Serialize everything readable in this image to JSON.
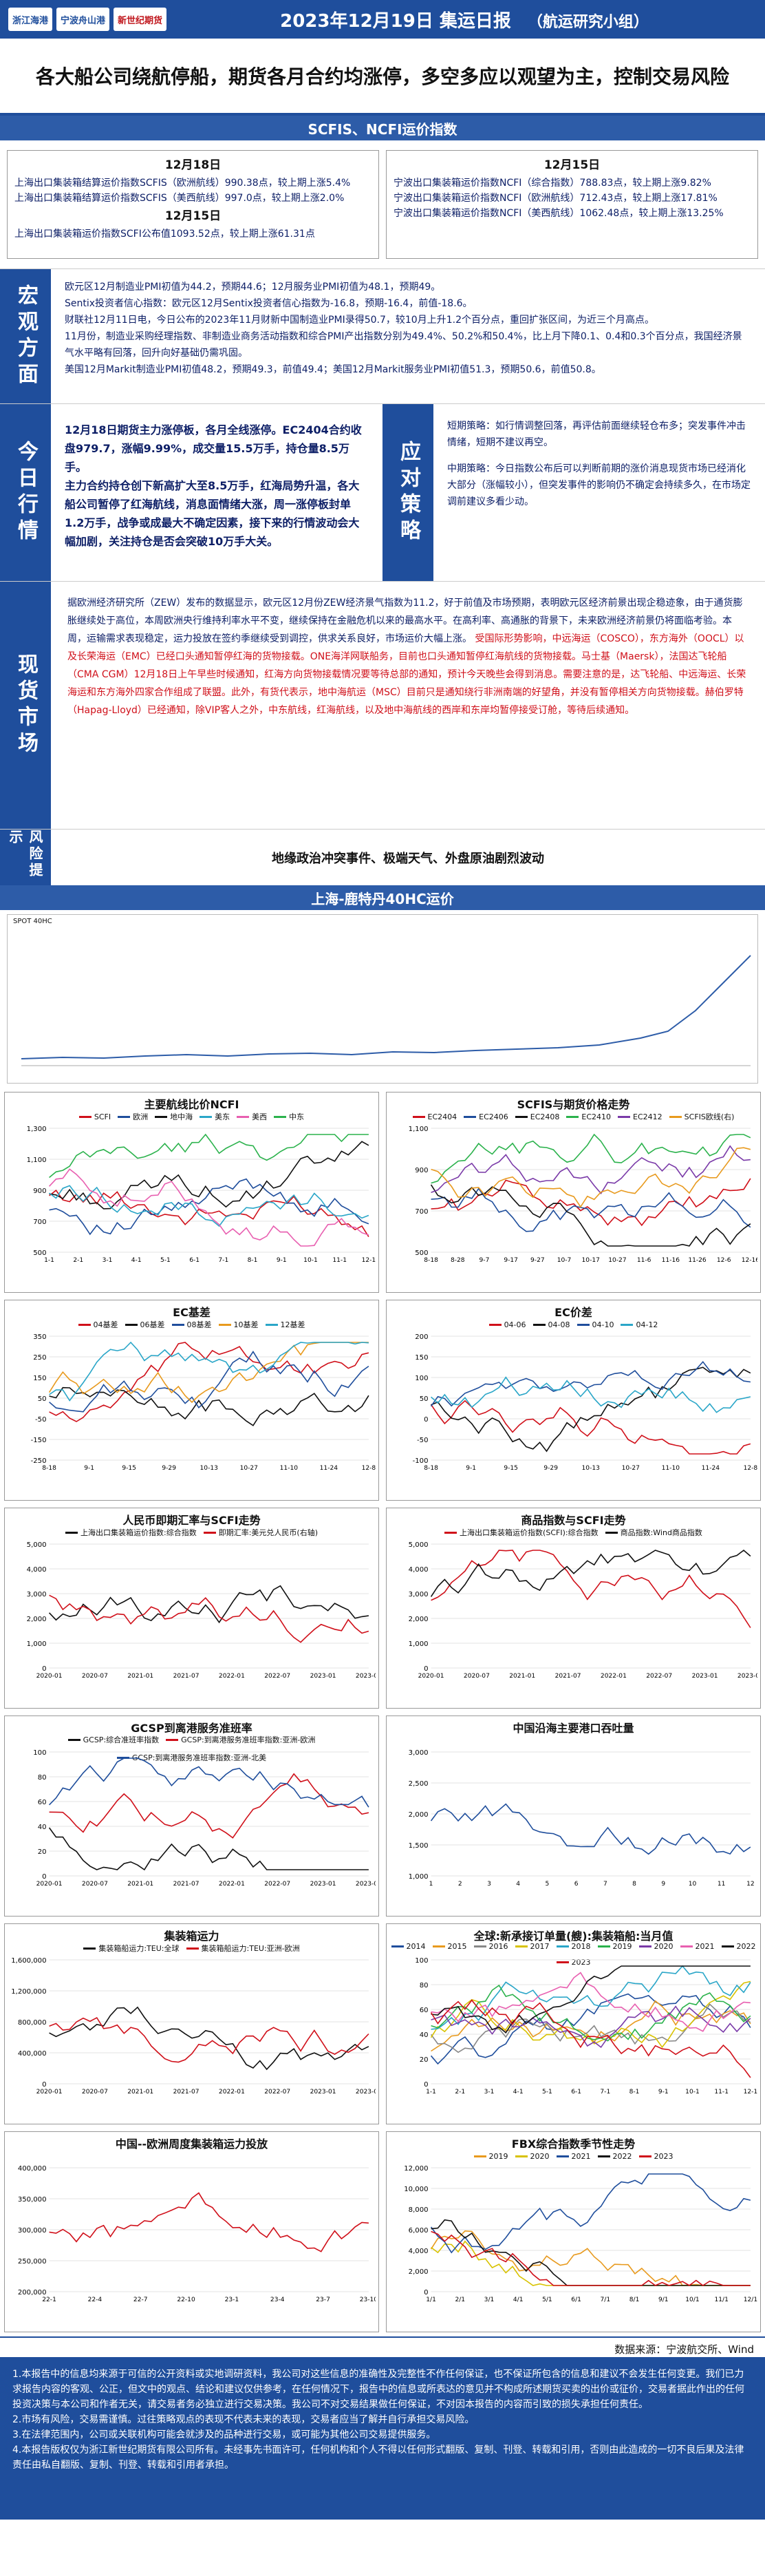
{
  "header": {
    "logos": [
      "浙江海港",
      "宁波舟山港",
      "新世纪期货"
    ],
    "title": "2023年12月19日 集运日报",
    "group": "（航运研究小组）"
  },
  "headline": "各大船公司绕航停船，期货各月合约均涨停，多空多应以观望为主，控制交易风险",
  "scfis_section": "SCFIS、NCFI运价指数",
  "scfis": {
    "left_date_1": "12月18日",
    "left_lines_1": [
      "上海出口集装箱结算运价指数SCFIS（欧洲航线）990.38点，较上期上涨5.4%",
      "上海出口集装箱结算运价指数SCFIS（美西航线）997.0点，较上期上涨2.0%"
    ],
    "left_date_2": "12月15日",
    "left_lines_2": [
      "上海出口集装箱运价指数SCFI公布值1093.52点，较上期上涨61.31点"
    ],
    "right_date": "12月15日",
    "right_lines": [
      "宁波出口集装箱运价指数NCFI（综合指数）788.83点，较上期上涨9.82%",
      "宁波出口集装箱运价指数NCFI（欧洲航线）712.43点，较上期上涨17.81%",
      "宁波出口集装箱运价指数NCFI（美西航线）1062.48点，较上期上涨13.25%"
    ]
  },
  "macro": {
    "label": "宏观方面",
    "lines": [
      "欧元区12月制造业PMI初值为44.2，预期44.6；12月服务业PMI初值为48.1，预期49。",
      "Sentix投资者信心指数：欧元区12月Sentix投资者信心指数为-16.8，预期-16.4，前值-18.6。",
      "财联社12月11日电，今日公布的2023年11月财新中国制造业PMI录得50.7，较10月上升1.2个百分点，重回扩张区间，为近三个月高点。",
      "11月份，制造业采购经理指数、非制造业商务活动指数和综合PMI产出指数分别为49.4%、50.2%和50.4%，比上月下降0.1、0.4和0.3个百分点，我国经济景气水平略有回落，回升向好基础仍需巩固。",
      "美国12月Markit制造业PMI初值48.2，预期49.3，前值49.4；美国12月Markit服务业PMI初值51.3，预期50.6，前值50.8。"
    ]
  },
  "today": {
    "label": "今日行情",
    "lines": [
      "12月18日期货主力涨停板，各月全线涨停。EC2404合约收盘979.7，涨幅9.99%，成交量15.5万手，持仓量8.5万手。",
      "主力合约持仓创下新高扩大至8.5万手，红海局势升温，各大船公司暂停了红海航线，消息面情绪大涨，周一涨停板封单1.2万手，战争或成最大不确定因素，接下来的行情波动会大幅加剧，关注持仓是否会突破10万手大关。"
    ]
  },
  "strategy": {
    "label": "应对策略",
    "short": "短期策略：如行情调整回落，再评估前面继续轻仓布多；突发事件冲击情绪，短期不建议再空。",
    "mid": "中期策略：今日指数公布后可以判断前期的涨价消息现货市场已经消化大部分（涨幅较小），但突发事件的影响仍不确定会持续多久，在市场定调前建议多看少动。"
  },
  "spot": {
    "label": "现货市场",
    "para1": "据欧洲经济研究所（ZEW）发布的数据显示，欧元区12月份ZEW经济景气指数为11.2，好于前值及市场预期，表明欧元区经济前景出现企稳迹象，由于通货膨胀继续处于高位，本周欧洲央行维持利率水平不变，继续保持在金融危机以来的最高水平。在高利率、高通胀的背景下，未来欧洲经济前景仍将面临考验。本周，运输需求表现稳定，运力投放在签约季继续受到调控，供求关系良好，市场运价大幅上涨。",
    "red1": "受国际形势影响，中远海运（COSCO），东方海外（OOCL）以及长荣海运（EMC）已经口头通知暂停红海的货物接载。ONE海洋网联船务，目前也口头通知暂停红海航线的货物接载。马士基（Maersk），法国达飞轮船（CMA CGM）12月18日上午早些时候通知，红海方向货物接载情况要等待总部的通知，预计今天晚些会得到消息。需要注意的是，达飞轮船、中远海运、长荣海运和东方海外四家合作组成了联盟。此外，有货代表示，地中海航运（MSC）目前只是通知绕行非洲南端的好望角，并没有暂停相关方向货物接载。赫伯罗特（Hapag-Lloyd）已经通知，除VIP客人之外，中东航线，红海航线，以及地中海航线的西岸和东岸均暂停接受订舱，等待后续通知。"
  },
  "risk": {
    "label": "风险提示",
    "text": "地缘政治冲突事件、极端天气、外盘原油剧烈波动"
  },
  "route_section": "上海-鹿特丹40HC运价",
  "route_chart": {
    "legend": "SPOT 40HC"
  },
  "charts": {
    "ncfi": {
      "title": "主要航线比价NCFI",
      "legend": [
        "SCFI",
        "欧洲",
        "地中海",
        "美东",
        "美西",
        "中东"
      ],
      "colors": [
        "#d0101a",
        "#1f4e9c",
        "#111111",
        "#2aa6c8",
        "#e85fb0",
        "#2bb24c"
      ],
      "xticks": [
        "1-1",
        "2-1",
        "3-1",
        "4-1",
        "5-1",
        "6-1",
        "7-1",
        "8-1",
        "9-1",
        "10-1",
        "11-1",
        "12-1"
      ],
      "yticks": [
        "1,300",
        "1,100",
        "900",
        "700",
        "500"
      ]
    },
    "scfis_future": {
      "title": "SCFIS与期货价格走势",
      "legend": [
        "EC2404",
        "EC2406",
        "EC2408",
        "EC2410",
        "EC2412",
        "SCFIS欧线(右)"
      ],
      "colors": [
        "#d0101a",
        "#1f4e9c",
        "#111111",
        "#2bb24c",
        "#7a3aa8",
        "#e89a1e"
      ],
      "xticks": [
        "8-18",
        "8-28",
        "9-7",
        "9-17",
        "9-27",
        "10-7",
        "10-17",
        "10-27",
        "11-6",
        "11-16",
        "11-26",
        "12-6",
        "12-16"
      ],
      "yticks": [
        "1,100",
        "900",
        "700",
        "500"
      ]
    },
    "ec_basis": {
      "title": "EC基差",
      "legend": [
        "04基差",
        "06基差",
        "08基差",
        "10基差",
        "12基差"
      ],
      "colors": [
        "#d0101a",
        "#111111",
        "#1f4e9c",
        "#e89a1e",
        "#2aa6c8"
      ],
      "xticks": [
        "8-18",
        "9-1",
        "9-15",
        "9-29",
        "10-13",
        "10-27",
        "11-10",
        "11-24",
        "12-8"
      ],
      "yticks": [
        "350",
        "250",
        "150",
        "50",
        "-50",
        "-150",
        "-250"
      ]
    },
    "ec_spread": {
      "title": "EC价差",
      "legend": [
        "04-06",
        "04-08",
        "04-10",
        "04-12"
      ],
      "colors": [
        "#d0101a",
        "#111111",
        "#1f4e9c",
        "#2aa6c8"
      ],
      "xticks": [
        "8-18",
        "9-1",
        "9-15",
        "9-29",
        "10-13",
        "10-27",
        "11-10",
        "11-24",
        "12-8"
      ],
      "yticks": [
        "200",
        "150",
        "100",
        "50",
        "0",
        "-50",
        "-100"
      ]
    },
    "fx": {
      "title": "人民币即期汇率与SCFI走势",
      "legend": [
        "上海出口集装箱运价指数:综合指数",
        "即期汇率:美元兑人民币(右轴)"
      ],
      "colors": [
        "#111111",
        "#d0101a"
      ],
      "xticks": [
        "2020-01",
        "2020-07",
        "2021-01",
        "2021-07",
        "2022-01",
        "2022-07",
        "2023-01",
        "2023-07"
      ],
      "yticks": [
        "5,000",
        "4,000",
        "3,000",
        "2,000",
        "1,000",
        "0"
      ]
    },
    "commodity": {
      "title": "商品指数与SCFI走势",
      "legend": [
        "上海出口集装箱运价指数(SCFI):综合指数",
        "商品指数:Wind商品指数"
      ],
      "colors": [
        "#d0101a",
        "#111111"
      ],
      "xticks": [
        "2020-01",
        "2020-07",
        "2021-01",
        "2021-07",
        "2022-01",
        "2022-07",
        "2023-01",
        "2023-07"
      ],
      "yticks": [
        "5,000",
        "4,000",
        "3,000",
        "2,000",
        "1,000",
        "0"
      ]
    },
    "gcsp": {
      "title": "GCSP到离港服务准班率",
      "legend": [
        "GCSP:综合准班率指数",
        "GCSP:到离港服务准班率指数:亚洲-欧洲",
        "GCSP:到离港服务准班率指数:亚洲-北美"
      ],
      "colors": [
        "#111111",
        "#d0101a",
        "#1f4e9c"
      ],
      "xticks": [
        "2020-01",
        "2020-07",
        "2021-01",
        "2021-07",
        "2022-01",
        "2022-07",
        "2023-01",
        "2023-07"
      ],
      "yticks": [
        "100",
        "80",
        "60",
        "40",
        "20",
        "0"
      ]
    },
    "ports": {
      "title": "中国沿海主要港口吞吐量",
      "legend": [],
      "colors": [
        "#1f4e9c",
        "#d0101a",
        "#111111"
      ],
      "xticks": [
        "1",
        "2",
        "3",
        "4",
        "5",
        "6",
        "7",
        "8",
        "9",
        "10",
        "11",
        "12"
      ],
      "yticks": [
        "3,000",
        "2,500",
        "2,000",
        "1,500",
        "1,000"
      ]
    },
    "capacity": {
      "title": "集装箱运力",
      "legend": [
        "集装箱船运力:TEU:全球",
        "集装箱船运力:TEU:亚洲-欧洲"
      ],
      "colors": [
        "#111111",
        "#d0101a"
      ],
      "xticks": [
        "2020-01",
        "2020-07",
        "2021-01",
        "2021-07",
        "2022-01",
        "2022-07",
        "2023-01",
        "2023-07"
      ],
      "yticks": [
        "1,600,000",
        "1,200,000",
        "800,000",
        "400,000",
        "0"
      ]
    },
    "global_rate": {
      "title": "全球:新承接订单量(艘):集装箱船:当月值",
      "legend": [
        "2014",
        "2015",
        "2016",
        "2017",
        "2018",
        "2019",
        "2020",
        "2021",
        "2022",
        "2023"
      ],
      "colors": [
        "#1f4e9c",
        "#e89a1e",
        "#888888",
        "#d8c200",
        "#2aa6c8",
        "#2bb24c",
        "#7a3aa8",
        "#e85fb0",
        "#111111",
        "#d0101a"
      ],
      "xticks": [
        "1-1",
        "2-1",
        "3-1",
        "4-1",
        "5-1",
        "6-1",
        "7-1",
        "8-1",
        "9-1",
        "10-1",
        "11-1",
        "12-1"
      ],
      "yticks": [
        "100",
        "80",
        "60",
        "40",
        "20",
        "0"
      ]
    },
    "china_eu": {
      "title": "中国--欧洲周度集装箱运力投放",
      "legend": [],
      "colors": [
        "#d0101a"
      ],
      "xticks": [
        "22-1",
        "22-4",
        "22-7",
        "22-10",
        "23-1",
        "23-4",
        "23-7",
        "23-10"
      ],
      "yticks": [
        "400,000",
        "350,000",
        "300,000",
        "250,000",
        "200,000"
      ]
    },
    "fbx": {
      "title": "FBX综合指数季节性走势",
      "legend": [
        "2019",
        "2020",
        "2021",
        "2022",
        "2023"
      ],
      "colors": [
        "#e89a1e",
        "#d8c200",
        "#1f4e9c",
        "#111111",
        "#d0101a"
      ],
      "xticks": [
        "1/1",
        "2/1",
        "3/1",
        "4/1",
        "5/1",
        "6/1",
        "7/1",
        "8/1",
        "9/1",
        "10/1",
        "11/1",
        "12/1"
      ],
      "yticks": [
        "12,000",
        "10,000",
        "8,000",
        "6,000",
        "4,000",
        "2,000",
        "0"
      ]
    }
  },
  "source": "数据来源：宁波航交所、Wind",
  "disclaimer": [
    "1.本报告中的信息均来源于可信的公开资料或实地调研资料，我公司对这些信息的准确性及完整性不作任何保证，也不保证所包含的信息和建议不会发生任何变更。我们已力求报告内容的客观、公正，但文中的观点、结论和建议仅供参考，在任何情况下，报告中的信息或所表达的意见并不构成所述期货买卖的出价或征价，交易者据此作出的任何投资决策与本公司和作者无关，请交易者务必独立进行交易决策。我公司不对交易结果做任何保证，不对因本报告的内容而引致的损失承担任何责任。",
    "2.市场有风险，交易需谨慎。过往策略观点的表现不代表未来的表现，交易者应当了解并自行承担交易风险。",
    "3.在法律范围内，公司或关联机构可能会就涉及的品种进行交易，或可能为其他公司交易提供服务。",
    "4.本报告版权仅为浙江新世纪期货有限公司所有。未经事先书面许可，任何机构和个人不得以任何形式翻版、复制、刊登、转载和引用，否则由此造成的一切不良后果及法律责任由私自翻版、复制、刊登、转载和引用者承担。"
  ]
}
